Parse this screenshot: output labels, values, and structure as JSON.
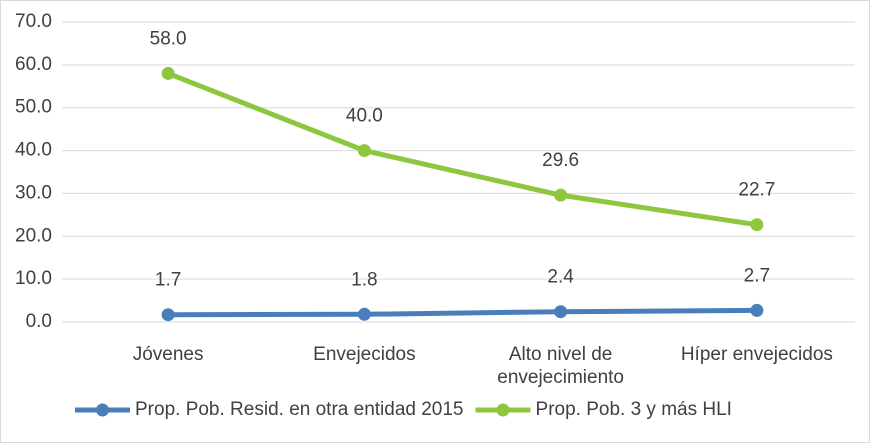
{
  "chart_data": {
    "type": "line",
    "categories": [
      "Jóvenes",
      "Envejecidos",
      "Alto nivel de envejecimiento",
      "Híper envejecidos"
    ],
    "series": [
      {
        "name": "Prop. Pob. Resid. en otra entidad 2015",
        "color": "#4a7ebb",
        "values": [
          1.7,
          1.8,
          2.4,
          2.7
        ],
        "value_labels": [
          "1.7",
          "1.8",
          "2.4",
          "2.7"
        ]
      },
      {
        "name": "Prop. Pob. 3 y más HLI",
        "color": "#8dc63f",
        "values": [
          58.0,
          40.0,
          29.6,
          22.7
        ],
        "value_labels": [
          "58.0",
          "40.0",
          "29.6",
          "22.7"
        ]
      }
    ],
    "ylim": [
      0,
      70
    ],
    "yticks": [
      {
        "value": 0,
        "label": "0.0"
      },
      {
        "value": 10,
        "label": "10.0"
      },
      {
        "value": 20,
        "label": "20.0"
      },
      {
        "value": 30,
        "label": "30.0"
      },
      {
        "value": 40,
        "label": "40.0"
      },
      {
        "value": 50,
        "label": "50.0"
      },
      {
        "value": 60,
        "label": "60.0"
      },
      {
        "value": 70,
        "label": "70.0"
      }
    ],
    "grid": true,
    "legend": "bottom"
  }
}
